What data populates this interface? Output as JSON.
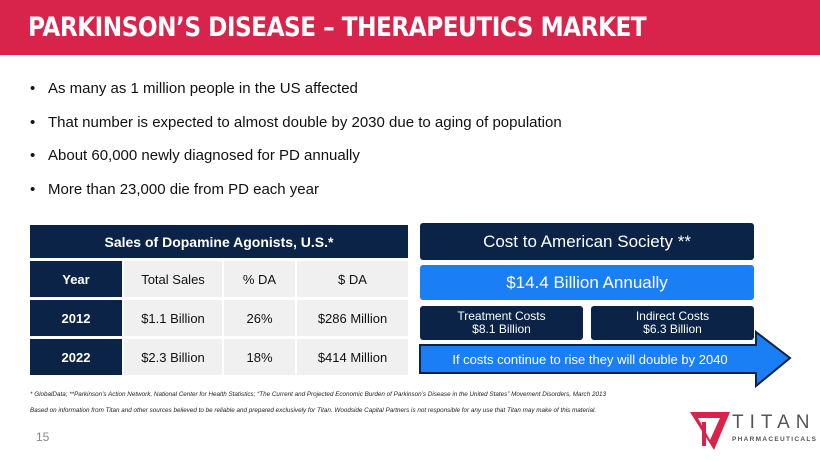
{
  "header": {
    "title": "PARKINSON’S DISEASE – THERAPEUTICS MARKET"
  },
  "bullets": [
    "As many as 1 million people in the US affected",
    "That number is expected to almost double by 2030 due to aging of population",
    "About 60,000 newly diagnosed for PD annually",
    "More than 23,000 die from PD each year"
  ],
  "table": {
    "title": "Sales of Dopamine Agonists, U.S.*",
    "columns": [
      "Year",
      "Total Sales",
      "% DA",
      "$ DA"
    ],
    "rows": [
      [
        "2012",
        "$1.1 Billion",
        "26%",
        "$286 Million"
      ],
      [
        "2022",
        "$2.3 Billion",
        "18%",
        "$414 Million"
      ]
    ]
  },
  "cost": {
    "title": "Cost to American  Society **",
    "total": "$14.4  Billion Annually",
    "treatment_label": "Treatment Costs",
    "treatment_value": "$8.1 Billion",
    "indirect_label": "Indirect Costs",
    "indirect_value": "$6.3 Billion",
    "arrow_text": "If costs continue to rise they will double by 2040"
  },
  "footnotes": [
    "* GlobalData; **Parkinson’s Action Network, National Center for Health Statistics; “The Current and Projected Economic Burden of Parkinson’s Disease in the United States” Movement Disorders, March 2013",
    "Based on information  from Titan and other sources believed to be reliable and prepared exclusively for Titan. Woodside Capital Partners is not responsible for any use that Titan may make of this material."
  ],
  "page_number": "15",
  "logo": {
    "name": "TITAN",
    "sub": "PHARMACEUTICALS"
  },
  "colors": {
    "brand_red": "#d8234b",
    "navy": "#0b2346",
    "blue": "#1a7ef5"
  }
}
